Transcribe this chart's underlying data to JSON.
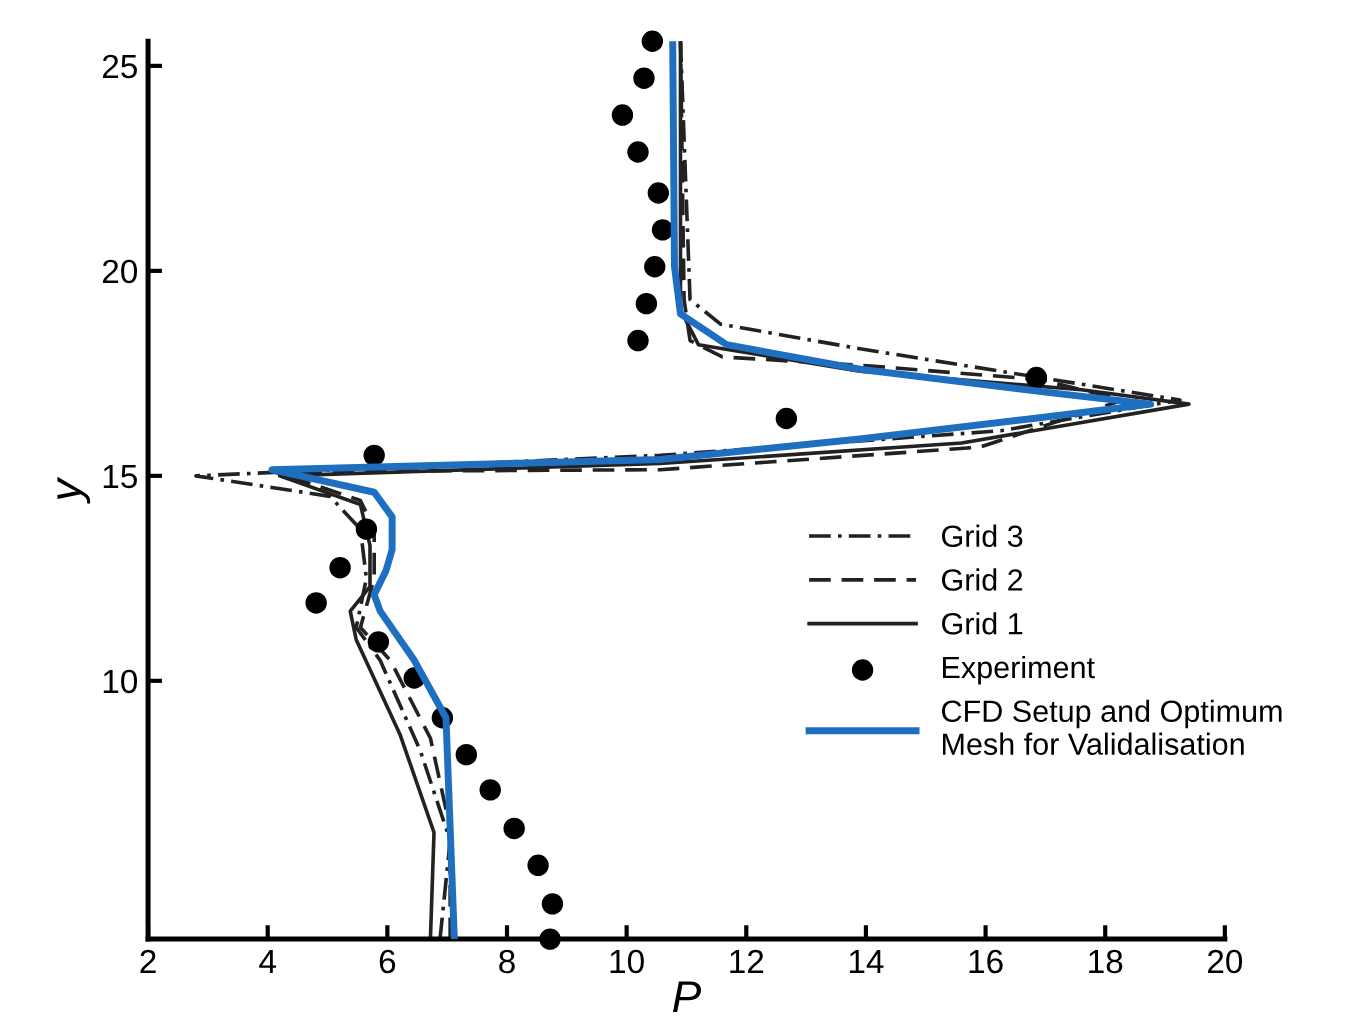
{
  "chart_data": {
    "type": "line",
    "xlabel": "P",
    "ylabel": "y",
    "xlim": [
      2,
      20
    ],
    "ylim": [
      3.7,
      25.6
    ],
    "xticks": [
      2,
      4,
      6,
      8,
      10,
      12,
      14,
      16,
      18,
      20
    ],
    "yticks": [
      10,
      15,
      20,
      25
    ],
    "grid": false,
    "legend": "right",
    "series": [
      {
        "name": "Grid 3",
        "color": "#222222",
        "line_style": "dashdot",
        "x": [
          6.88,
          7.05,
          6.55,
          5.88,
          5.48,
          5.65,
          5.55,
          5.04,
          2.8,
          10.56,
          16.25,
          19.25,
          16.9,
          13.9,
          11.57,
          11.06,
          10.9
        ],
        "values": [
          3.7,
          6.1,
          8.3,
          10.5,
          11.3,
          12.5,
          13.7,
          14.5,
          15.0,
          15.5,
          16.1,
          16.85,
          17.4,
          18.1,
          18.7,
          19.3,
          25.6
        ]
      },
      {
        "name": "Grid 2",
        "color": "#222222",
        "line_style": "dashed",
        "x": [
          7.05,
          7.05,
          6.72,
          6.05,
          5.55,
          5.78,
          5.78,
          5.55,
          4.54,
          4.1,
          10.56,
          15.9,
          18.3,
          16.9,
          13.9,
          11.6,
          11.06,
          10.96,
          10.9
        ],
        "values": [
          3.7,
          6.4,
          8.6,
          10.5,
          11.3,
          12.5,
          13.7,
          14.4,
          14.9,
          15.1,
          15.15,
          15.7,
          16.85,
          17.35,
          17.7,
          17.9,
          18.3,
          19.3,
          25.6
        ]
      },
      {
        "name": "Grid 1",
        "color": "#222222",
        "line_style": "solid",
        "x": [
          6.72,
          6.78,
          6.21,
          5.48,
          5.38,
          5.71,
          5.71,
          5.55,
          4.2,
          10.56,
          15.6,
          19.4,
          17.6,
          13.9,
          11.2,
          10.9,
          10.9
        ],
        "values": [
          3.7,
          6.3,
          8.7,
          11.0,
          11.7,
          12.3,
          13.3,
          14.3,
          15.0,
          15.3,
          15.8,
          16.75,
          17.1,
          17.55,
          18.2,
          19.05,
          25.6
        ]
      },
      {
        "name": "Experiment",
        "type": "scatter",
        "color": "#000000",
        "marker": "circle",
        "x": [
          10.43,
          10.29,
          9.93,
          10.19,
          10.53,
          10.6,
          10.47,
          10.33,
          10.19,
          16.85,
          12.67,
          5.78,
          5.65,
          5.21,
          4.81,
          5.85,
          6.45,
          6.92,
          7.32,
          7.72,
          8.12,
          8.52,
          8.76,
          8.72
        ],
        "values": [
          25.6,
          24.7,
          23.8,
          22.9,
          21.9,
          21.0,
          20.1,
          19.2,
          18.3,
          17.4,
          16.4,
          15.5,
          13.7,
          12.76,
          11.9,
          10.95,
          10.07,
          9.1,
          8.2,
          7.34,
          6.4,
          5.5,
          4.56,
          3.7
        ]
      },
      {
        "name": "CFD Setup and Optimum\nMesh for Validalisation",
        "color": "#1f6fc0",
        "line_style": "solid",
        "x": [
          7.12,
          6.98,
          6.45,
          5.88,
          5.78,
          5.98,
          6.08,
          6.08,
          5.78,
          4.07,
          10.56,
          13.9,
          16.8,
          18.76,
          17.25,
          13.9,
          11.67,
          10.9,
          10.8,
          10.77
        ],
        "values": [
          3.7,
          9.1,
          10.5,
          11.7,
          12.1,
          12.7,
          13.2,
          14.0,
          14.6,
          15.15,
          15.4,
          15.9,
          16.4,
          16.75,
          17.0,
          17.6,
          18.2,
          18.95,
          20.1,
          25.6
        ]
      }
    ]
  }
}
